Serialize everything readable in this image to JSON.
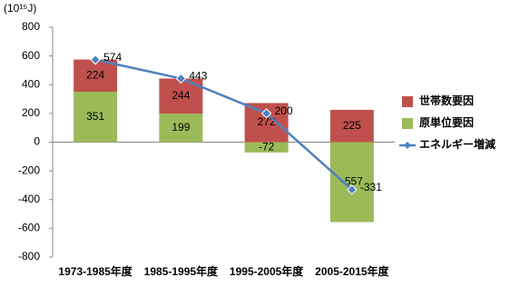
{
  "chart_data": {
    "type": "bar-line",
    "unit": "(10¹⁵J)",
    "categories": [
      "1973-1985年度",
      "1985-1995年度",
      "1995-2005年度",
      "2005-2015年度"
    ],
    "series": [
      {
        "name": "原単位要因",
        "color": "#9bbb59",
        "values": [
          351,
          199,
          -72,
          -557
        ]
      },
      {
        "name": "世帯数要因",
        "color": "#c0504d",
        "values": [
          224,
          244,
          272,
          225
        ]
      },
      {
        "name": "エネルギー増減",
        "color": "#4f81bd",
        "type": "line",
        "values": [
          574,
          443,
          200,
          -331
        ]
      }
    ],
    "legend_order": [
      1,
      0,
      2
    ],
    "ylim": [
      -800,
      800
    ],
    "yticks": [
      -800,
      -600,
      -400,
      -200,
      0,
      200,
      400,
      600,
      800
    ],
    "grid": false
  }
}
